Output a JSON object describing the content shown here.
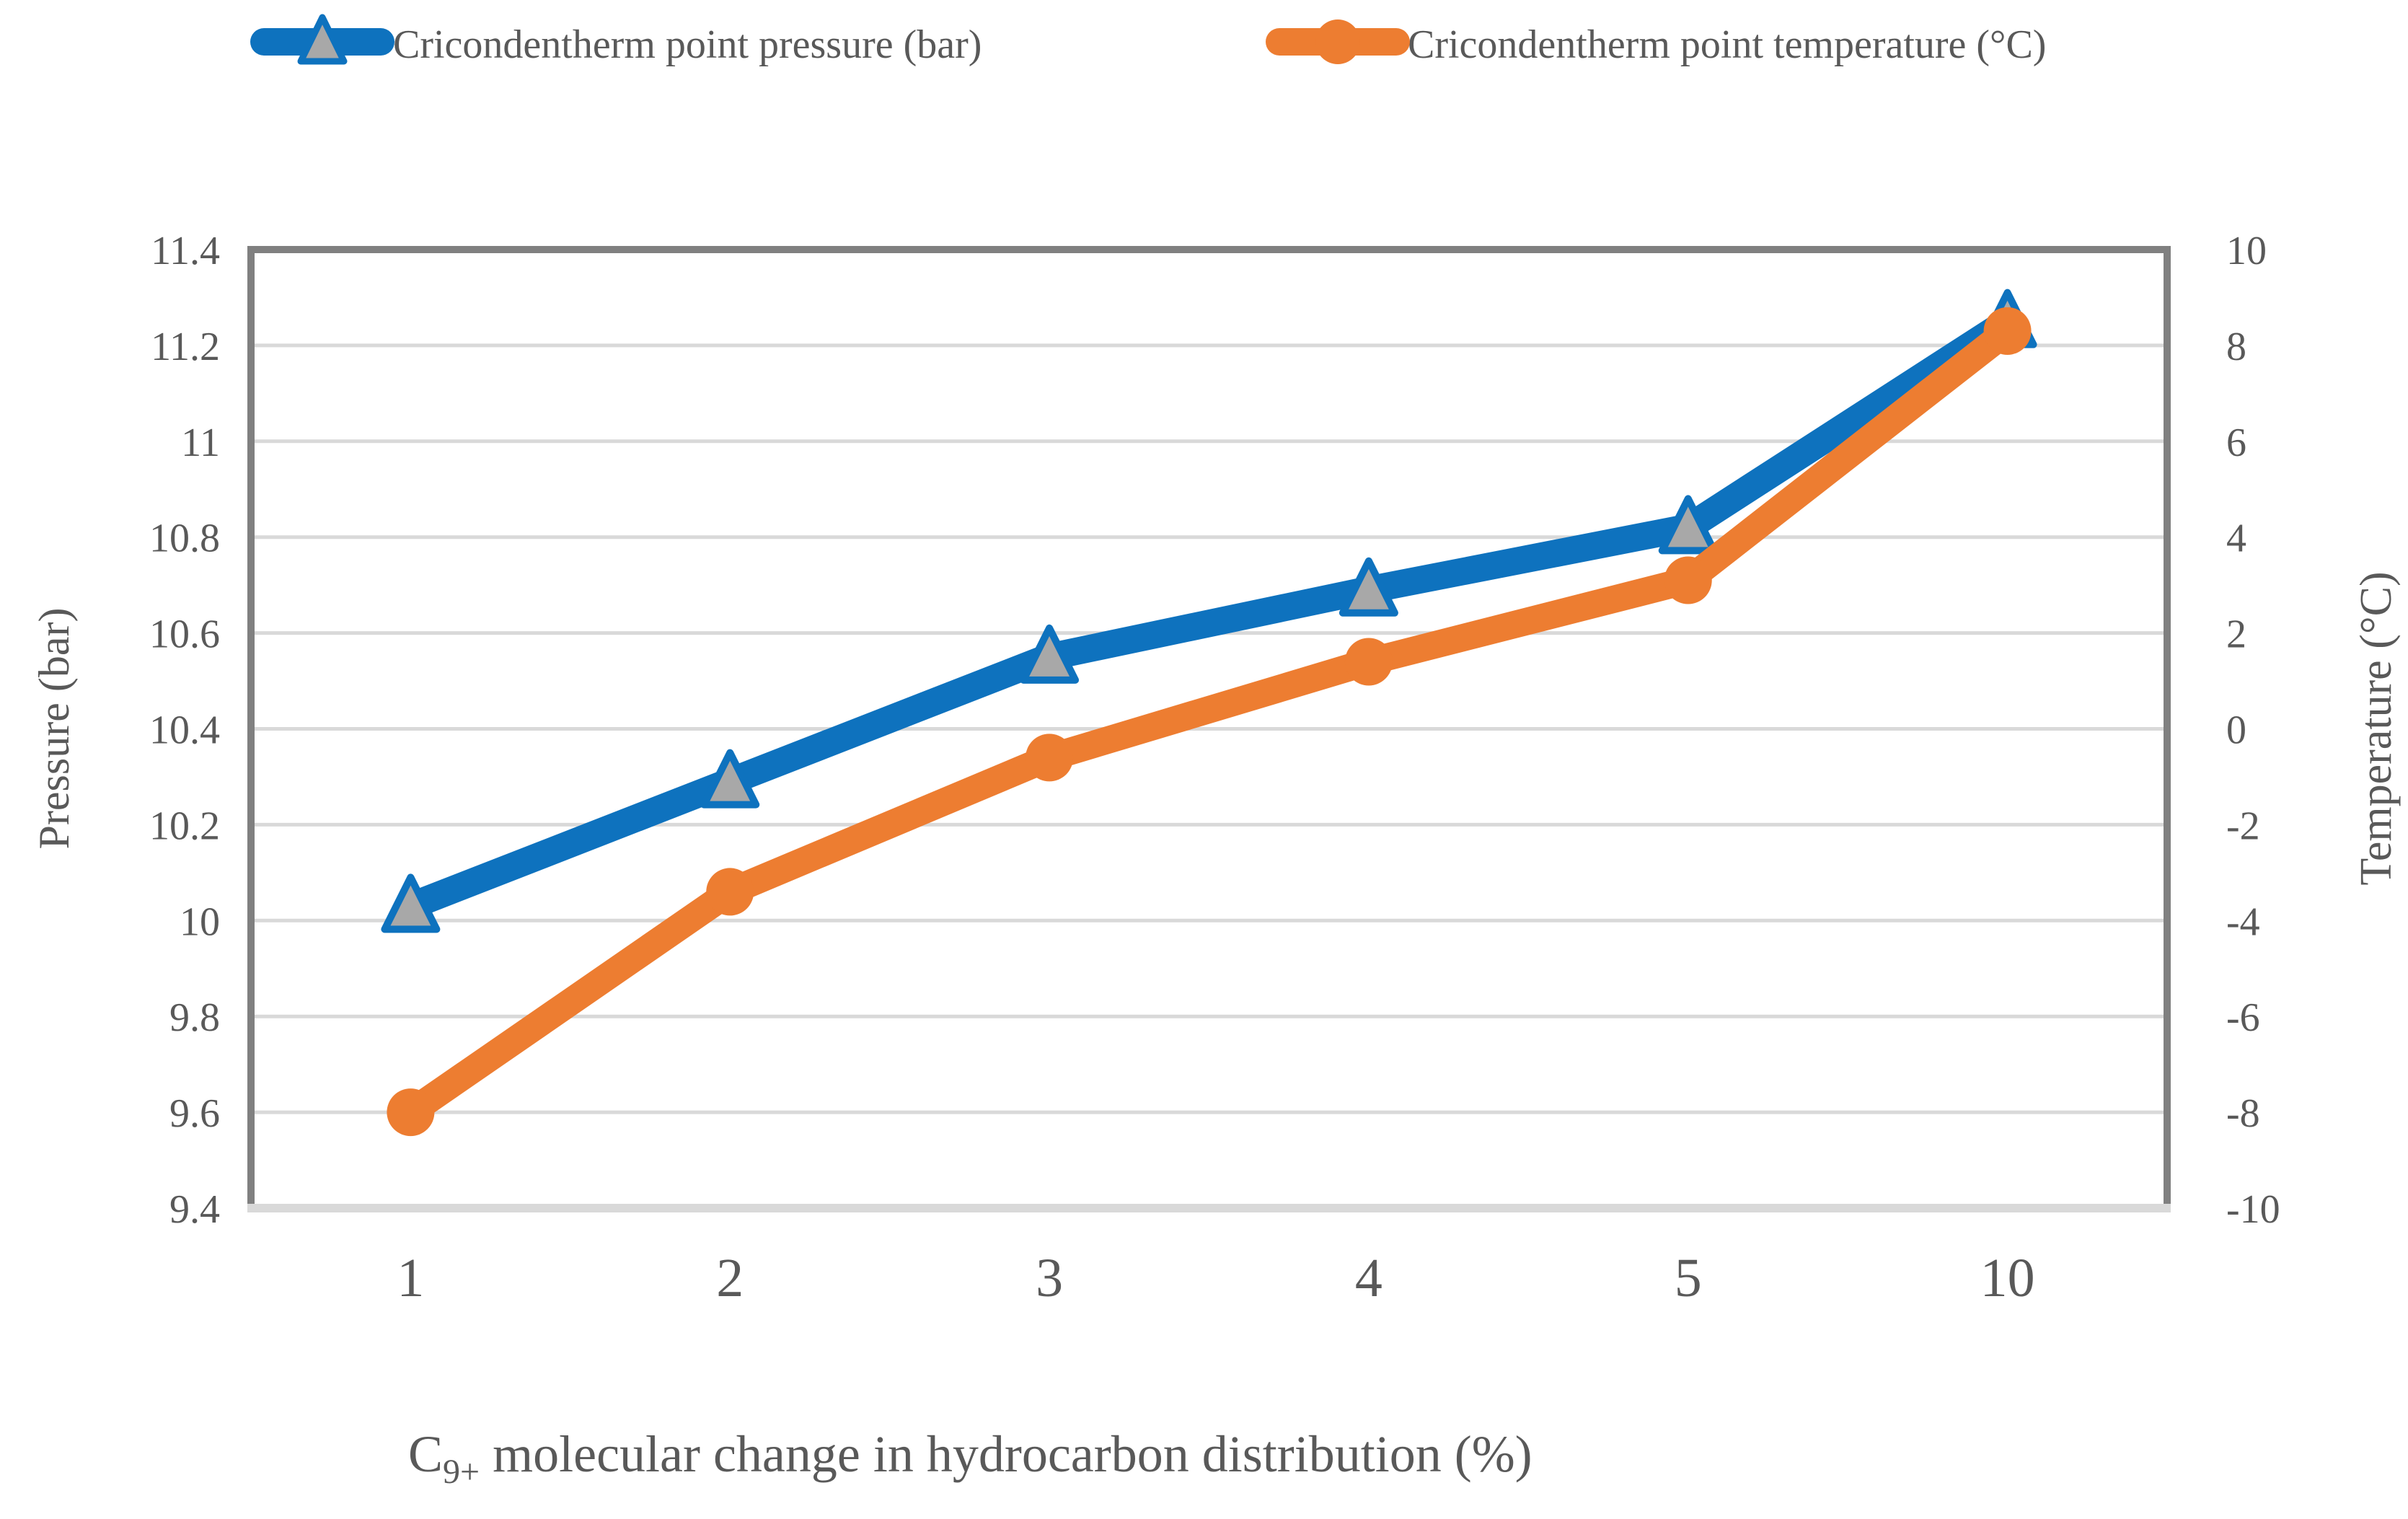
{
  "figure": {
    "background": "#ffffff",
    "text_color": "#595959",
    "gridline_color": "#d9d9d9",
    "border_color": "#808080",
    "bottom_axis_color": "#d9d9d9"
  },
  "legend": {
    "position": "top",
    "items": [
      {
        "label": "Cricondentherm point pressure (bar)",
        "series": "pressure"
      },
      {
        "label": "Cricondentherm point temperature (°C)",
        "series": "temperature"
      }
    ]
  },
  "chart_data": {
    "type": "line",
    "categories": [
      "1",
      "2",
      "3",
      "4",
      "5",
      "10"
    ],
    "series": [
      {
        "name": "Cricondentherm point pressure (bar)",
        "axis": "left",
        "color": "#0e72be",
        "marker": "triangle",
        "marker_fill": "#a8a8a8",
        "values": [
          10.03,
          10.29,
          10.55,
          10.69,
          10.82,
          11.25
        ]
      },
      {
        "name": "Cricondentherm point temperature (°C)",
        "axis": "right",
        "color": "#ed7d31",
        "marker": "circle",
        "marker_fill": "#ed7d31",
        "values": [
          -8.0,
          -3.4,
          -0.6,
          1.4,
          3.1,
          8.3
        ]
      }
    ],
    "xlabel": "C9+ molecular change in hydrocarbon distribution (%)",
    "xlabel_parts": {
      "prefix": "C",
      "sub": "9+",
      "rest": " molecular change in hydrocarbon distribution (%)"
    },
    "ylabel_left": "Pressure (bar)",
    "ylabel_right": "Temperature (°C)",
    "yleft": {
      "min": 9.4,
      "max": 11.4,
      "step": 0.2
    },
    "yright": {
      "min": -10,
      "max": 10,
      "step": 2
    },
    "yleft_ticks": [
      "9.4",
      "9.6",
      "9.8",
      "10",
      "10.2",
      "10.4",
      "10.6",
      "10.8",
      "11",
      "11.2",
      "11.4"
    ],
    "yright_ticks": [
      "-10",
      "-8",
      "-6",
      "-4",
      "-2",
      "0",
      "2",
      "4",
      "6",
      "8",
      "10"
    ],
    "grid": true,
    "legend_position": "top"
  }
}
